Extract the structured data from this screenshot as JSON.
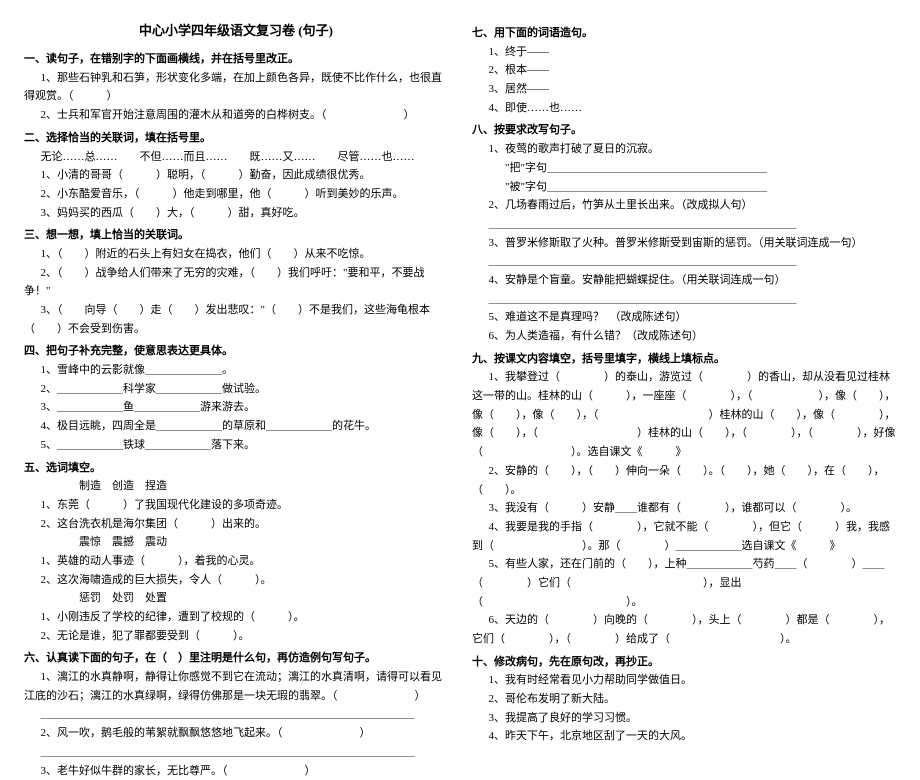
{
  "title": "中心小学四年级语文复习卷 (句子)",
  "left": {
    "s1": {
      "heading": "一、读句子，在错别字的下面画横线，并在括号里改正。",
      "i1": "1、那些石钟乳和石笋，形状变化多端，在加上颜色各异，既使不比作什么，也很直得观赏。（　　　）",
      "i2": "2、士兵和军官开始注意周围的灌木从和道旁的白桦树支。（　　　　　　　）"
    },
    "s2": {
      "heading": "二、选择恰当的关联词，填在括号里。",
      "opts": "无论……总……　　不但……而且……　　既……又……　　尽管……也……",
      "i1": "1、小清的哥哥（　　　）聪明，（　　　）勤奋，因此成绩很优秀。",
      "i2": "2、小东酷爱音乐，（　　　）他走到哪里，他（　　　）听到美妙的乐声。",
      "i3": "3、妈妈买的西瓜（　　）大，（　　　）甜，真好吃。"
    },
    "s3": {
      "heading": "三、想一想，填上恰当的关联词。",
      "i1": "1、（　　）附近的石头上有妇女在捣衣，他们（　　）从来不吃惊。",
      "i2": "2、（　　）战争给人们带来了无穷的灾难，（　　）我们呼吁：\"要和平，不要战争！\"",
      "i3": "3、（　　向导（　　）走（　　）发出悲叹：\"（　　）不是我们，这些海龟根本（　　）不会受到伤害。"
    },
    "s4": {
      "heading": "四、把句子补充完整，使意思表达更具体。",
      "i1": "1、雪峰中的云影就像＿＿＿＿＿＿＿。",
      "i2": "2、＿＿＿＿＿＿科学家＿＿＿＿＿＿做试验。",
      "i3": "3、＿＿＿＿＿＿鱼＿＿＿＿＿＿游来游去。",
      "i4": "4、极目远眺，四周全是＿＿＿＿＿＿的草原和＿＿＿＿＿＿的花牛。",
      "i5": "5、＿＿＿＿＿＿铁球＿＿＿＿＿＿落下来。"
    },
    "s5": {
      "heading": "五、选词填空。",
      "g1": "　　制造　创造　捏造",
      "i1": "1、东莞（　　　）了我国现代化建设的多项奇迹。",
      "i2": "2、这台洗衣机是海尔集团（　　　）出来的。",
      "g2": "　　震惊　震撼　震动",
      "i3": "1、英雄的动人事迹（　　　），着我的心灵。",
      "i4": "2、这次海啸造成的巨大损失，令人（　　　）。",
      "g3": "　　惩罚　处罚　处置",
      "i5": "1、小刚违反了学校的纪律，遭到了校规的（　　　）。",
      "i6": "2、无论是谁，犯了罪都要受到（　　　）。"
    },
    "s6": {
      "heading": "六、认真读下面的句子，在（　）里注明是什么句，再仿造例句写句子。",
      "i1": "1、漓江的水真静啊，静得让你感觉不到它在流动；漓江的水真清啊，请得可以看见江底的沙石；漓江的水真绿啊，绿得仿佛那是一块无瑕的翡翠。（　　　　　　　）",
      "i1b": "＿＿＿＿＿＿＿＿＿＿＿＿＿＿＿＿＿＿＿＿＿＿＿＿＿＿＿＿＿＿＿＿＿＿",
      "i2": "2、风一吹，鹅毛般的苇絮就飘飘悠悠地飞起来。（　　　　　　　）",
      "i2b": "＿＿＿＿＿＿＿＿＿＿＿＿＿＿＿＿＿＿＿＿＿＿＿＿＿＿＿＿＿＿＿＿＿＿",
      "i3": "3、老牛好似牛群的家长，无比尊严。（　　　　　　　）"
    }
  },
  "right": {
    "s7": {
      "heading": "七、用下面的词语造句。",
      "i1": "1、终于——",
      "i2": "2、根本——",
      "i3": "3、居然——",
      "i4": "4、即使……也……"
    },
    "s8": {
      "heading": "八、按要求改写句子。",
      "i1": "1、夜莺的歌声打破了夏日的沉寂。",
      "i1a": "\"把\"字句＿＿＿＿＿＿＿＿＿＿＿＿＿＿＿＿＿＿＿＿",
      "i1b": "\"被\"字句＿＿＿＿＿＿＿＿＿＿＿＿＿＿＿＿＿＿＿＿",
      "i2": "2、几场春雨过后，竹笋从土里长出来。（改成拟人句）",
      "i2a": "＿＿＿＿＿＿＿＿＿＿＿＿＿＿＿＿＿＿＿＿＿＿＿＿＿＿＿＿",
      "i3": "3、普罗米修斯取了火种。普罗米修斯受到宙斯的惩罚。（用关联词连成一句）",
      "i3a": "＿＿＿＿＿＿＿＿＿＿＿＿＿＿＿＿＿＿＿＿＿＿＿＿＿＿＿＿",
      "i4": "4、安静是个盲童。安静能把蝴蝶捉住。（用关联词连成一句）",
      "i4a": "＿＿＿＿＿＿＿＿＿＿＿＿＿＿＿＿＿＿＿＿＿＿＿＿＿＿＿＿",
      "i5": "5、难道这不是真理吗？　（改成陈述句）",
      "i6": "6、为人类造福，有什么错？（改成陈述句）"
    },
    "s9": {
      "heading": "九、按课文内容填空，括号里填字，横线上填标点。",
      "i1": "1、我攀登过（　　　　）的泰山，游览过（　　　　）的香山，却从没看见过桂林这一带的山。桂林的山（　　　），一座座（　　　　），（　　　　　　），像（　　），像（　　），像（　　），（　　　　　　　　　　）桂林的山（　　），像（　　　　），像（　　），（　　　　　　　　　）桂林的山（　　），（　　　　），（　　　　），好像（　　　　　　　　）。选自课文《　　　》",
      "i2": "2、安静的（　　），（　　）伸向一朵（　　）。（　　），她（　　），在（　　），（　　）。",
      "i3": "3、我没有（　　　）安静＿＿谁都有（　　　　），谁都可以（　　　　）。",
      "i4": "4、我要是我的手指（　　　　），它就不能（　　　　），但它（　　　）我，我感到（　　　　　　　　）。那（　　　　）＿＿＿＿＿＿选自课文《　　　》",
      "i5": "5、有些人家，还在门前的（　　），上种＿＿＿＿＿＿芍药＿＿（　　　　）＿＿（　　　　）它们（　　　　　　　　　　　　），显出（　　　　　　　　　　　　　）。",
      "i6": "6、天边的（　　　　）向晚的（　　　　），头上（　　　　）都是（　　　　），它们（　　　　），（　　　　）给成了（　　　　　　　　　　）。"
    },
    "s10": {
      "heading": "十、修改病句，先在原句改，再抄正。",
      "i1": "1、我有时经常看见小力帮助同学做值日。",
      "i2": "2、哥伦布发明了新大陆。",
      "i3": "3、我提高了良好的学习习惯。",
      "i4": "4、昨天下午，北京地区刮了一天的大风。"
    }
  }
}
